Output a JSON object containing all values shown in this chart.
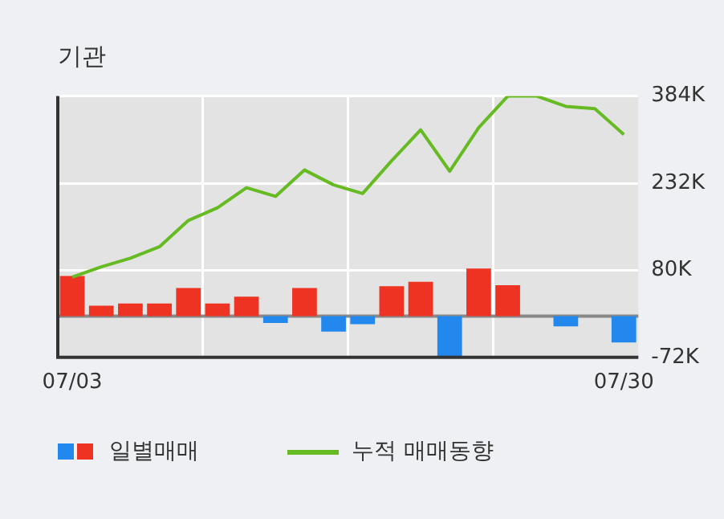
{
  "chart_data": {
    "type": "bar",
    "title": "기관",
    "categories": [
      "07/03",
      null,
      null,
      null,
      null,
      null,
      null,
      null,
      null,
      null,
      null,
      null,
      null,
      null,
      null,
      null,
      null,
      null,
      null,
      "07/30"
    ],
    "series": [
      {
        "name": "일별매매",
        "colors": [
          "#ee3322",
          "#ee3322",
          "#ee3322",
          "#ee3322",
          "#ee3322",
          "#ee3322",
          "#ee3322",
          "#2288ee",
          "#ee3322",
          "#2288ee",
          "#2288ee",
          "#ee3322",
          "#ee3322",
          "#2288ee",
          "#ee3322",
          "#ee3322",
          "#ee3322",
          "#2288ee",
          "#ee3322",
          "#2288ee"
        ],
        "values": [
          70,
          18,
          22,
          22,
          49,
          22,
          34,
          -12,
          49,
          -27,
          -14,
          52,
          60,
          -71,
          83,
          54,
          0,
          -18,
          0,
          -46
        ]
      },
      {
        "name": "누적 매매동향",
        "type": "line",
        "color": "#66bb22",
        "values": [
          68,
          86,
          101,
          121,
          167,
          189,
          224,
          209,
          255,
          229,
          214,
          271,
          325,
          253,
          329,
          384,
          384,
          366,
          362,
          317
        ]
      }
    ],
    "ylim": [
      -72,
      384
    ],
    "yticks": [
      {
        "value": -72,
        "label": "-72K"
      },
      {
        "value": 80,
        "label": "80K"
      },
      {
        "value": 232,
        "label": "232K"
      },
      {
        "value": 384,
        "label": "384K"
      }
    ],
    "grid": true,
    "legend": "bottom"
  }
}
